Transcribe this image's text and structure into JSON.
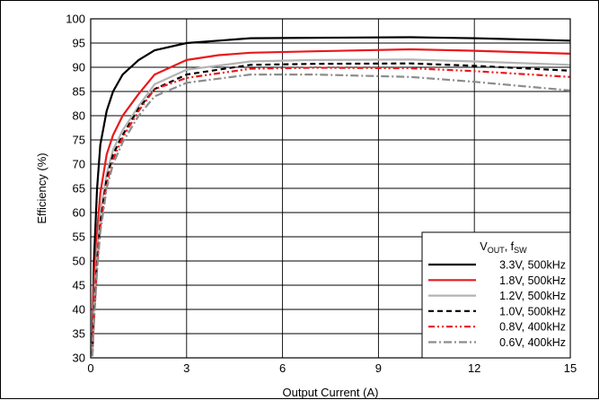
{
  "chart_data": {
    "type": "line",
    "xlabel": "Output Current (A)",
    "ylabel": "Efficiency (%)",
    "xlim": [
      0,
      15
    ],
    "ylim": [
      30,
      100
    ],
    "xticks": [
      "0",
      "3",
      "6",
      "9",
      "12",
      "15"
    ],
    "yticks": [
      "30",
      "35",
      "40",
      "45",
      "50",
      "55",
      "60",
      "65",
      "70",
      "75",
      "80",
      "85",
      "90",
      "95",
      "100"
    ],
    "grid": true,
    "legend_placement": "bottom-right",
    "legend_title": {
      "main": "V",
      "sub1": "OUT",
      "sep": ", f",
      "sub2": "SW"
    },
    "series": [
      {
        "name": "3.3V, 500kHz",
        "color": "#000000",
        "dash": "solid",
        "x": [
          0.05,
          0.1,
          0.2,
          0.3,
          0.5,
          0.7,
          1,
          1.5,
          2,
          3,
          5,
          7,
          10,
          12,
          15
        ],
        "y": [
          33,
          50,
          65,
          74,
          81,
          85,
          88.5,
          91.5,
          93.5,
          95,
          96,
          96.1,
          96.2,
          96,
          95.5
        ]
      },
      {
        "name": "1.8V, 500kHz",
        "color": "#e8191c",
        "dash": "solid",
        "x": [
          0.05,
          0.1,
          0.2,
          0.3,
          0.5,
          0.7,
          1,
          1.5,
          2,
          3,
          4,
          5,
          7,
          10,
          12,
          15
        ],
        "y": [
          31,
          45,
          56,
          64,
          72,
          76,
          80,
          84.5,
          88.5,
          91.5,
          92.5,
          93,
          93.3,
          93.7,
          93.4,
          92.8
        ]
      },
      {
        "name": "1.2V, 500kHz",
        "color": "#b3b3b3",
        "dash": "solid",
        "x": [
          0.05,
          0.1,
          0.2,
          0.3,
          0.5,
          0.7,
          1,
          1.5,
          2,
          3,
          5,
          7,
          10,
          12,
          15
        ],
        "y": [
          30.5,
          40,
          52,
          60,
          68,
          73,
          77,
          82,
          86.5,
          89.5,
          91.2,
          91.5,
          91.6,
          91.2,
          90.5
        ]
      },
      {
        "name": "1.0V, 500kHz",
        "color": "#000000",
        "dash": "dash",
        "x": [
          0.05,
          0.1,
          0.2,
          0.3,
          0.5,
          0.7,
          1,
          1.5,
          2,
          3,
          5,
          7,
          10,
          12,
          15
        ],
        "y": [
          30.5,
          39,
          50,
          58,
          67,
          72,
          76,
          81.5,
          85.5,
          88.5,
          90.5,
          90.7,
          90.8,
          90.3,
          89.3
        ]
      },
      {
        "name": "0.8V, 400kHz",
        "color": "#e8191c",
        "dash": "dashdotdot",
        "x": [
          0.05,
          0.1,
          0.2,
          0.3,
          0.5,
          0.7,
          1,
          1.5,
          2,
          3,
          5,
          7,
          10,
          12,
          15
        ],
        "y": [
          30.5,
          38,
          49,
          57,
          66,
          71,
          75.5,
          81,
          85.5,
          87.8,
          89.7,
          89.9,
          89.8,
          89.2,
          88
        ]
      },
      {
        "name": "0.6V, 400kHz",
        "color": "#8c8c8c",
        "dash": "dashdot",
        "x": [
          0.05,
          0.1,
          0.2,
          0.3,
          0.5,
          0.7,
          1,
          1.5,
          2,
          3,
          5,
          7,
          10,
          12,
          15
        ],
        "y": [
          30.3,
          37,
          48,
          56,
          65,
          70,
          74.5,
          80,
          84,
          86.8,
          88.5,
          88.5,
          88,
          87,
          85.2
        ]
      }
    ]
  }
}
